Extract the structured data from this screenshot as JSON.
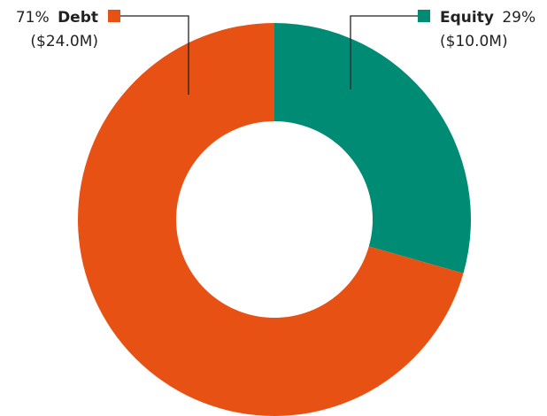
{
  "chart_data": {
    "type": "pie",
    "variant": "donut",
    "categories": [
      "Equity",
      "Debt"
    ],
    "values": [
      10.0,
      24.0
    ],
    "value_labels": [
      "($10.0M)",
      "($24.0M)"
    ],
    "percent_labels": [
      "29%",
      "71%"
    ],
    "colors": [
      "#008C74",
      "#E85114"
    ],
    "start_angle_deg": 0,
    "direction": "clockwise",
    "legend": "none"
  }
}
